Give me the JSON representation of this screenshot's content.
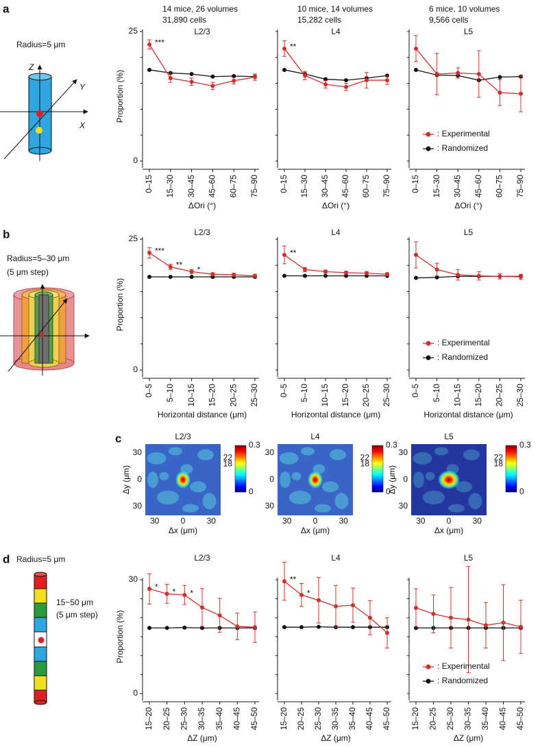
{
  "figure": {
    "panel_labels": [
      "a",
      "b",
      "c",
      "d"
    ],
    "schematic_a": {
      "radius": "Radius=5 μm",
      "axes": [
        "Z",
        "Y",
        "X"
      ]
    },
    "schematic_b": {
      "radius": "Radius=5–30 μm",
      "step": "(5 μm step)"
    },
    "schematic_d": {
      "radius": "Radius=5 μm",
      "range": "15~50 μm",
      "step": "(5 μm step)"
    }
  },
  "chart_data": [
    {
      "type": "line",
      "title": "L2/3",
      "subtitle": [
        "14 mice, 26 volumes",
        "31,890 cells"
      ],
      "categories": [
        "0–15",
        "15–30",
        "30–45",
        "45–60",
        "60–75",
        "75–90"
      ],
      "xlabel": "ΔOri (°)",
      "ylabel": "Proportion (%)",
      "ylim": [
        0,
        25
      ],
      "yticks": [
        0,
        25
      ],
      "minor_yticks": [
        5,
        10,
        15,
        20
      ],
      "series": [
        {
          "color": "#d0302b",
          "values": [
            22.5,
            16,
            15.3,
            14.5,
            15.5,
            16.2
          ],
          "errors": [
            0.9,
            0.8,
            0.7,
            0.7,
            0.6,
            0.6
          ],
          "significance": [
            "***",
            null,
            null,
            null,
            null,
            null
          ]
        },
        {
          "color": "#111111",
          "values": [
            17.6,
            17,
            16.8,
            16.3,
            16.4,
            16.3
          ]
        }
      ]
    },
    {
      "type": "line",
      "title": "L4",
      "subtitle": [
        "10 mice, 14 volumes",
        "15,282 cells"
      ],
      "categories": [
        "0–15",
        "15–30",
        "30–45",
        "45–60",
        "60–75",
        "75–90"
      ],
      "xlabel": "ΔOri (°)",
      "ylim": [
        0,
        25
      ],
      "minor_yticks": [
        0,
        5,
        10,
        15,
        20,
        25
      ],
      "series": [
        {
          "color": "#d0302b",
          "values": [
            21.7,
            16.5,
            14.8,
            14.3,
            15.6,
            15.6
          ],
          "errors": [
            1.5,
            0.8,
            0.7,
            0.7,
            1.5,
            0.8
          ],
          "significance": [
            "**",
            null,
            null,
            null,
            null,
            null
          ]
        },
        {
          "color": "#111111",
          "values": [
            17.6,
            16.8,
            15.8,
            15.6,
            16,
            16.5
          ]
        }
      ]
    },
    {
      "type": "line",
      "title": "L5",
      "subtitle": [
        "6 mice, 10 volumes",
        "9,566 cells"
      ],
      "categories": [
        "0–15",
        "15–30",
        "30–45",
        "45–60",
        "60–75",
        "75–90"
      ],
      "xlabel": "ΔOri (°)",
      "ylim": [
        0,
        25
      ],
      "minor_yticks": [
        0,
        5,
        10,
        15,
        20,
        25
      ],
      "legend": "lower right",
      "series": [
        {
          "name": ": Experimental",
          "color": "#d0302b",
          "values": [
            21.7,
            16.8,
            17,
            16.8,
            13.2,
            13
          ],
          "errors": [
            2.5,
            4,
            1,
            4.5,
            2.5,
            3.5
          ]
        },
        {
          "name": ": Randomized",
          "color": "#111111",
          "values": [
            17.6,
            16.6,
            16.5,
            15.6,
            16.2,
            16.3
          ]
        }
      ]
    },
    {
      "type": "line",
      "title": "L2/3",
      "categories": [
        "0–5",
        "5–10",
        "10–15",
        "15–20",
        "20–25",
        "25–30"
      ],
      "xlabel": "Horizontal distance (μm)",
      "ylabel": "Proportion (%)",
      "ylim": [
        0,
        25
      ],
      "yticks": [
        0,
        25
      ],
      "minor_yticks": [
        5,
        10,
        15,
        20
      ],
      "series": [
        {
          "color": "#d0302b",
          "values": [
            22.4,
            19.7,
            18.8,
            18.3,
            18.2,
            18
          ],
          "errors": [
            1,
            0.5,
            0.4,
            0.3,
            0.3,
            0.3
          ],
          "significance": [
            "***",
            "**",
            "*",
            null,
            null,
            null
          ]
        },
        {
          "color": "#111111",
          "values": [
            17.8,
            17.8,
            17.8,
            17.8,
            17.8,
            17.8
          ]
        }
      ]
    },
    {
      "type": "line",
      "title": "L4",
      "categories": [
        "0–5",
        "5–10",
        "10–15",
        "15–20",
        "20–25",
        "25–30"
      ],
      "xlabel": "Horizontal distance (μm)",
      "ylim": [
        0,
        25
      ],
      "minor_yticks": [
        0,
        5,
        10,
        15,
        20,
        25
      ],
      "series": [
        {
          "color": "#d0302b",
          "values": [
            22,
            19.2,
            18.8,
            18.6,
            18.5,
            18.3
          ],
          "errors": [
            1.7,
            0.4,
            0.3,
            0.3,
            0.3,
            0.3
          ],
          "significance": [
            "**",
            null,
            null,
            null,
            null,
            null
          ]
        },
        {
          "color": "#111111",
          "values": [
            18,
            18,
            18,
            18,
            18,
            18
          ]
        }
      ]
    },
    {
      "type": "line",
      "title": "L5",
      "categories": [
        "0–5",
        "5–10",
        "10–15",
        "15–20",
        "20–25",
        "25–30"
      ],
      "xlabel": "Horizontal distance (μm)",
      "ylim": [
        0,
        25
      ],
      "minor_yticks": [
        0,
        5,
        10,
        15,
        20,
        25
      ],
      "legend": "lower right",
      "series": [
        {
          "name": ": Experimental",
          "color": "#d0302b",
          "values": [
            22,
            19.2,
            18.2,
            18,
            17.9,
            17.8
          ],
          "errors": [
            2.5,
            1.2,
            1,
            0.8,
            0.5,
            0.5
          ]
        },
        {
          "name": ": Randomized",
          "color": "#111111",
          "values": [
            17.6,
            17.7,
            17.9,
            17.9,
            17.9,
            17.9
          ]
        }
      ]
    },
    {
      "type": "heatmap",
      "title": "L2/3",
      "xlabel": "Δx (μm)",
      "ylabel": "Δy (μm)",
      "xlim": [
        -40,
        40
      ],
      "ylim": [
        -40,
        40
      ],
      "xticks": [
        {
          "value": -30,
          "label": "30"
        },
        0,
        30
      ],
      "yticks": [
        30,
        0,
        {
          "value": -30,
          "label": "30"
        }
      ],
      "clim": [
        0,
        0.3
      ],
      "cticks": [
        {
          "value": 0.3,
          "label": "0.3"
        },
        {
          "value": 0.22,
          "label": "22"
        },
        {
          "value": 0.18,
          "label": "18"
        },
        0
      ]
    },
    {
      "type": "heatmap",
      "title": "L4",
      "xlabel": "Δx (μm)",
      "xlim": [
        -40,
        40
      ],
      "ylim": [
        -40,
        40
      ],
      "xticks": [
        {
          "value": -30,
          "label": "30"
        },
        0,
        30
      ],
      "yticks": [
        30,
        0,
        {
          "value": -30,
          "label": "30"
        }
      ],
      "clim": [
        0,
        0.3
      ],
      "cticks": [
        {
          "value": 0.3,
          "label": "0.3"
        },
        {
          "value": 0.22,
          "label": "22"
        },
        {
          "value": 0.18,
          "label": "18"
        },
        0
      ]
    },
    {
      "type": "heatmap",
      "title": "L5",
      "xlabel": "Δx (μm)",
      "ylabel": "Δy (μm)",
      "xlim": [
        -40,
        40
      ],
      "ylim": [
        -40,
        40
      ],
      "xticks": [
        {
          "value": -30,
          "label": "30"
        },
        0,
        30
      ],
      "yticks": [
        30,
        0,
        {
          "value": -30,
          "label": "30"
        }
      ],
      "clim": [
        0,
        0.3
      ],
      "cticks": [
        {
          "value": 0.3,
          "label": "0.3"
        },
        {
          "value": 0.22,
          "label": "22"
        },
        {
          "value": 0.18,
          "label": "18"
        },
        0
      ]
    },
    {
      "type": "line",
      "title": "L2/3",
      "categories": [
        "15–20",
        "20–25",
        "25–30",
        "30–35",
        "35–40",
        "40–45",
        "45–50"
      ],
      "xlabel": "ΔZ (μm)",
      "ylabel": "Proportion (%)",
      "ylim": [
        0,
        30
      ],
      "yticks": [
        0,
        30
      ],
      "minor_yticks": [
        5,
        10,
        15,
        20,
        25
      ],
      "series": [
        {
          "color": "#d0302b",
          "values": [
            27.6,
            26.3,
            26,
            22.7,
            20.6,
            17.7,
            17.5
          ],
          "errors": [
            4,
            2.5,
            2.5,
            5,
            4.5,
            3.5,
            4
          ],
          "significance": [
            "*",
            "*",
            "*",
            null,
            null,
            null,
            null
          ]
        },
        {
          "color": "#111111",
          "values": [
            17.3,
            17.3,
            17.4,
            17.3,
            17.3,
            17.3,
            17.3
          ]
        }
      ]
    },
    {
      "type": "line",
      "title": "L4",
      "categories": [
        "15–20",
        "20–25",
        "25–30",
        "30–35",
        "35–40",
        "40–45",
        "45–50"
      ],
      "xlabel": "ΔZ (μm)",
      "ylim": [
        0,
        30
      ],
      "minor_yticks": [
        0,
        5,
        10,
        15,
        20,
        25,
        30
      ],
      "series": [
        {
          "color": "#d0302b",
          "values": [
            29.6,
            26,
            24.6,
            23,
            23.3,
            20,
            16
          ],
          "errors": [
            5,
            3,
            6,
            5.5,
            4.5,
            4.5,
            4
          ],
          "significance": [
            "**",
            "*",
            null,
            null,
            null,
            null,
            null
          ]
        },
        {
          "color": "#111111",
          "values": [
            17.5,
            17.5,
            17.6,
            17.5,
            17.5,
            17.5,
            17.5
          ]
        }
      ]
    },
    {
      "type": "line",
      "title": "L5",
      "categories": [
        "15–20",
        "20–25",
        "25–30",
        "30–35",
        "35–40",
        "40–45",
        "45–50"
      ],
      "xlabel": "ΔZ (μm)",
      "ylim": [
        0,
        30
      ],
      "minor_yticks": [
        0,
        5,
        10,
        15,
        20,
        25,
        30
      ],
      "legend": "lower right",
      "series": [
        {
          "name": ": Experimental",
          "color": "#d0302b",
          "values": [
            22.6,
            21,
            20,
            19.5,
            18,
            18.7,
            17.6
          ],
          "errors": [
            5,
            5,
            8,
            14,
            6,
            10,
            7
          ]
        },
        {
          "name": ": Randomized",
          "color": "#111111",
          "values": [
            17.3,
            17.3,
            17.3,
            17.3,
            17.3,
            17.3,
            17.3
          ]
        }
      ]
    }
  ]
}
